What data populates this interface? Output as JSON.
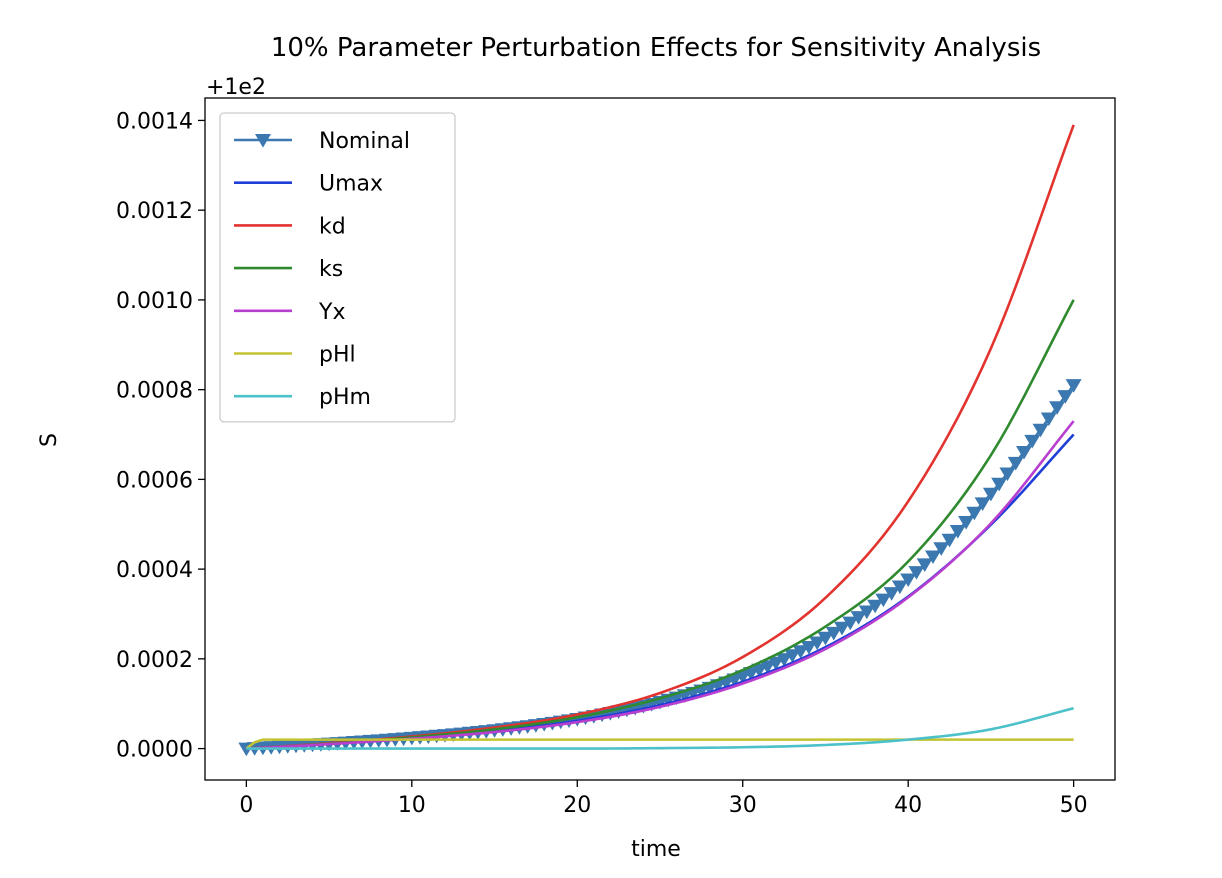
{
  "chart_data": {
    "type": "line",
    "title": "10% Parameter Perturbation Effects for Sensitivity Analysis",
    "xlabel": "time",
    "ylabel": "S",
    "offset_label": "+1e2",
    "offset_value": 100,
    "xlim": [
      -2.5,
      52.5
    ],
    "ylim": [
      -7e-05,
      0.00145
    ],
    "xticks": [
      0,
      10,
      20,
      30,
      40,
      50
    ],
    "xtick_labels": [
      "0",
      "10",
      "20",
      "30",
      "40",
      "50"
    ],
    "yticks": [
      0,
      0.0002,
      0.0004,
      0.0006,
      0.0008,
      0.001,
      0.0012,
      0.0014
    ],
    "ytick_labels": [
      "0.0000",
      "0.0002",
      "0.0004",
      "0.0006",
      "0.0008",
      "0.0010",
      "0.0012",
      "0.0014"
    ],
    "grid": false,
    "legend_position": "upper left",
    "series": [
      {
        "name": "Nominal",
        "color": "#3b78b0",
        "marker": "triangle_down",
        "x": [
          0,
          5,
          10,
          15,
          20,
          25,
          30,
          35,
          40,
          45,
          50
        ],
        "y": [
          0.0,
          1.1e-05,
          2.4e-05,
          4.1e-05,
          6.6e-05,
          0.000104,
          0.000161,
          0.000247,
          0.000377,
          0.000568,
          0.00081
        ]
      },
      {
        "name": "Umax",
        "color": "#1f3fd6",
        "marker": "none",
        "x": [
          0,
          5,
          10,
          15,
          20,
          25,
          30,
          35,
          40,
          45,
          50
        ],
        "y": [
          0.0,
          1.1e-05,
          2.3e-05,
          3.9e-05,
          6.2e-05,
          9.7e-05,
          0.000149,
          0.000226,
          0.000339,
          0.000499,
          0.0007
        ]
      },
      {
        "name": "kd",
        "color": "#e2332f",
        "marker": "none",
        "x": [
          0,
          5,
          10,
          15,
          20,
          25,
          30,
          35,
          40,
          45,
          50
        ],
        "y": [
          0.0,
          1.2e-05,
          2.7e-05,
          4.7e-05,
          7.6e-05,
          0.000124,
          0.000204,
          0.000336,
          0.000551,
          0.000892,
          0.00139
        ]
      },
      {
        "name": "ks",
        "color": "#2f8a2f",
        "marker": "none",
        "x": [
          0,
          5,
          10,
          15,
          20,
          25,
          30,
          35,
          40,
          45,
          50
        ],
        "y": [
          0.0,
          1.1e-05,
          2.5e-05,
          4.3e-05,
          7e-05,
          0.000112,
          0.000175,
          0.000272,
          0.000417,
          0.000654,
          0.001
        ]
      },
      {
        "name": "Yx",
        "color": "#b83ecf",
        "marker": "none",
        "x": [
          0,
          5,
          10,
          15,
          20,
          25,
          30,
          35,
          40,
          45,
          50
        ],
        "y": [
          0.0,
          1e-05,
          2.2e-05,
          3.7e-05,
          5.9e-05,
          9.3e-05,
          0.000145,
          0.000222,
          0.000337,
          0.000502,
          0.00073
        ]
      },
      {
        "name": "pHl",
        "color": "#c3c332",
        "marker": "none",
        "x": [
          0,
          0.5,
          1,
          2,
          5,
          10,
          20,
          30,
          40,
          50
        ],
        "y": [
          0.0,
          1.4e-05,
          2e-05,
          2e-05,
          2e-05,
          2e-05,
          2e-05,
          2e-05,
          2e-05,
          2e-05
        ]
      },
      {
        "name": "pHm",
        "color": "#4dc1c9",
        "marker": "none",
        "x": [
          0,
          5,
          10,
          15,
          20,
          25,
          30,
          35,
          40,
          45,
          50
        ],
        "y": [
          0.0,
          0.0,
          0.0,
          0.0,
          0.0,
          1e-06,
          3e-06,
          8e-06,
          2e-05,
          4.3e-05,
          9e-05
        ]
      }
    ]
  }
}
